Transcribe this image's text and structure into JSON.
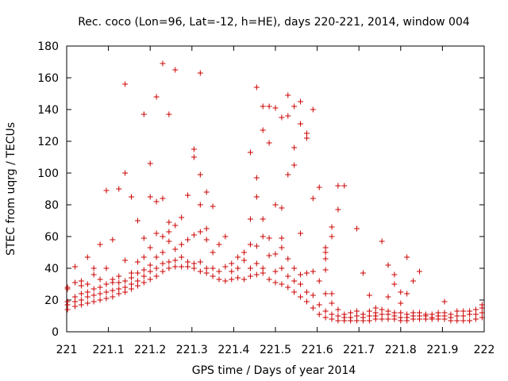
{
  "chart_data": {
    "type": "scatter",
    "title": "Rec. coco (Lon=96, Lat=-12, h=HE), days 220-221, 2014, window 004",
    "xlabel": "GPS time / Days of year 2014",
    "ylabel": "STEC from uqrg / TECUs",
    "xlim": [
      221,
      222
    ],
    "ylim": [
      0,
      180
    ],
    "x_ticks": [
      221,
      221.1,
      221.2,
      221.3,
      221.4,
      221.5,
      221.6,
      221.7,
      221.8,
      221.9,
      222
    ],
    "x_tick_labels": [
      "221",
      "221.1",
      "221.2",
      "221.3",
      "221.4",
      "221.5",
      "221.6",
      "221.7",
      "221.8",
      "221.9",
      "222"
    ],
    "y_ticks": [
      0,
      20,
      40,
      60,
      80,
      100,
      120,
      140,
      160,
      180
    ],
    "y_tick_labels": [
      "0",
      "20",
      "40",
      "60",
      "80",
      "100",
      "120",
      "140",
      "160",
      "180"
    ],
    "grid": false,
    "marker": "plus",
    "color": "#cc0000",
    "points": [
      [
        221.002,
        14
      ],
      [
        221.002,
        17
      ],
      [
        221.002,
        19
      ],
      [
        221.002,
        27
      ],
      [
        221.002,
        28
      ],
      [
        221.02,
        16
      ],
      [
        221.02,
        19
      ],
      [
        221.02,
        22
      ],
      [
        221.02,
        31
      ],
      [
        221.02,
        41
      ],
      [
        221.035,
        17
      ],
      [
        221.035,
        20
      ],
      [
        221.035,
        24
      ],
      [
        221.035,
        29
      ],
      [
        221.035,
        32
      ],
      [
        221.05,
        18
      ],
      [
        221.05,
        22
      ],
      [
        221.05,
        25
      ],
      [
        221.05,
        30
      ],
      [
        221.05,
        47
      ],
      [
        221.065,
        19
      ],
      [
        221.065,
        23
      ],
      [
        221.065,
        27
      ],
      [
        221.065,
        36
      ],
      [
        221.065,
        40
      ],
      [
        221.08,
        20
      ],
      [
        221.08,
        24
      ],
      [
        221.08,
        28
      ],
      [
        221.08,
        33
      ],
      [
        221.08,
        55
      ],
      [
        221.095,
        21
      ],
      [
        221.095,
        25
      ],
      [
        221.095,
        30
      ],
      [
        221.095,
        40
      ],
      [
        221.095,
        89
      ],
      [
        221.11,
        22
      ],
      [
        221.11,
        26
      ],
      [
        221.11,
        31
      ],
      [
        221.11,
        33
      ],
      [
        221.11,
        58
      ],
      [
        221.125,
        24
      ],
      [
        221.125,
        27
      ],
      [
        221.125,
        31
      ],
      [
        221.125,
        35
      ],
      [
        221.125,
        90
      ],
      [
        221.14,
        25
      ],
      [
        221.14,
        28
      ],
      [
        221.14,
        32
      ],
      [
        221.14,
        45
      ],
      [
        221.14,
        100
      ],
      [
        221.14,
        156
      ],
      [
        221.155,
        27
      ],
      [
        221.155,
        30
      ],
      [
        221.155,
        34
      ],
      [
        221.155,
        37
      ],
      [
        221.155,
        85
      ],
      [
        221.17,
        29
      ],
      [
        221.17,
        32
      ],
      [
        221.17,
        37
      ],
      [
        221.17,
        44
      ],
      [
        221.17,
        70
      ],
      [
        221.185,
        31
      ],
      [
        221.185,
        35
      ],
      [
        221.185,
        39
      ],
      [
        221.185,
        47
      ],
      [
        221.185,
        59
      ],
      [
        221.185,
        137
      ],
      [
        221.2,
        33
      ],
      [
        221.2,
        38
      ],
      [
        221.2,
        42
      ],
      [
        221.2,
        53
      ],
      [
        221.2,
        85
      ],
      [
        221.2,
        106
      ],
      [
        221.215,
        35
      ],
      [
        221.215,
        40
      ],
      [
        221.215,
        47
      ],
      [
        221.215,
        62
      ],
      [
        221.215,
        82
      ],
      [
        221.215,
        148
      ],
      [
        221.23,
        38
      ],
      [
        221.23,
        43
      ],
      [
        221.23,
        50
      ],
      [
        221.23,
        60
      ],
      [
        221.23,
        84
      ],
      [
        221.23,
        169
      ],
      [
        221.245,
        40
      ],
      [
        221.245,
        44
      ],
      [
        221.245,
        57
      ],
      [
        221.245,
        63
      ],
      [
        221.245,
        69
      ],
      [
        221.245,
        137
      ],
      [
        221.26,
        41
      ],
      [
        221.26,
        45
      ],
      [
        221.26,
        52
      ],
      [
        221.26,
        67
      ],
      [
        221.26,
        165
      ],
      [
        221.275,
        41
      ],
      [
        221.275,
        47
      ],
      [
        221.275,
        55
      ],
      [
        221.275,
        72
      ],
      [
        221.29,
        41
      ],
      [
        221.29,
        44
      ],
      [
        221.29,
        58
      ],
      [
        221.29,
        86
      ],
      [
        221.305,
        40
      ],
      [
        221.305,
        43
      ],
      [
        221.305,
        61
      ],
      [
        221.305,
        110
      ],
      [
        221.305,
        115
      ],
      [
        221.32,
        38
      ],
      [
        221.32,
        44
      ],
      [
        221.32,
        63
      ],
      [
        221.32,
        80
      ],
      [
        221.32,
        99
      ],
      [
        221.32,
        163
      ],
      [
        221.335,
        37
      ],
      [
        221.335,
        40
      ],
      [
        221.335,
        58
      ],
      [
        221.335,
        65
      ],
      [
        221.335,
        88
      ],
      [
        221.35,
        35
      ],
      [
        221.35,
        40
      ],
      [
        221.35,
        50
      ],
      [
        221.35,
        79
      ],
      [
        221.365,
        33
      ],
      [
        221.365,
        38
      ],
      [
        221.365,
        55
      ],
      [
        221.38,
        32
      ],
      [
        221.38,
        41
      ],
      [
        221.38,
        60
      ],
      [
        221.395,
        33
      ],
      [
        221.395,
        38
      ],
      [
        221.395,
        43
      ],
      [
        221.41,
        34
      ],
      [
        221.41,
        40
      ],
      [
        221.41,
        47
      ],
      [
        221.425,
        33
      ],
      [
        221.425,
        45
      ],
      [
        221.425,
        50
      ],
      [
        221.44,
        35
      ],
      [
        221.44,
        40
      ],
      [
        221.44,
        55
      ],
      [
        221.44,
        71
      ],
      [
        221.44,
        113
      ],
      [
        221.455,
        36
      ],
      [
        221.455,
        43
      ],
      [
        221.455,
        54
      ],
      [
        221.455,
        85
      ],
      [
        221.455,
        97
      ],
      [
        221.455,
        154
      ],
      [
        221.47,
        37
      ],
      [
        221.47,
        40
      ],
      [
        221.47,
        60
      ],
      [
        221.47,
        71
      ],
      [
        221.47,
        127
      ],
      [
        221.47,
        142
      ],
      [
        221.485,
        33
      ],
      [
        221.485,
        48
      ],
      [
        221.485,
        59
      ],
      [
        221.485,
        119
      ],
      [
        221.485,
        142
      ],
      [
        221.5,
        31
      ],
      [
        221.5,
        38
      ],
      [
        221.5,
        49
      ],
      [
        221.5,
        80
      ],
      [
        221.5,
        141
      ],
      [
        221.515,
        30
      ],
      [
        221.515,
        40
      ],
      [
        221.515,
        53
      ],
      [
        221.515,
        59
      ],
      [
        221.515,
        78
      ],
      [
        221.515,
        135
      ],
      [
        221.53,
        28
      ],
      [
        221.53,
        35
      ],
      [
        221.53,
        46
      ],
      [
        221.53,
        99
      ],
      [
        221.53,
        136
      ],
      [
        221.53,
        149
      ],
      [
        221.545,
        25
      ],
      [
        221.545,
        32
      ],
      [
        221.545,
        40
      ],
      [
        221.545,
        105
      ],
      [
        221.545,
        116
      ],
      [
        221.545,
        142
      ],
      [
        221.56,
        22
      ],
      [
        221.56,
        30
      ],
      [
        221.56,
        36
      ],
      [
        221.56,
        62
      ],
      [
        221.56,
        131
      ],
      [
        221.56,
        145
      ],
      [
        221.575,
        19
      ],
      [
        221.575,
        25
      ],
      [
        221.575,
        37
      ],
      [
        221.575,
        122
      ],
      [
        221.575,
        125
      ],
      [
        221.59,
        15
      ],
      [
        221.59,
        23
      ],
      [
        221.59,
        38
      ],
      [
        221.59,
        84
      ],
      [
        221.59,
        140
      ],
      [
        221.605,
        11
      ],
      [
        221.605,
        17
      ],
      [
        221.605,
        32
      ],
      [
        221.605,
        91
      ],
      [
        221.62,
        9
      ],
      [
        221.62,
        13
      ],
      [
        221.62,
        24
      ],
      [
        221.62,
        39
      ],
      [
        221.62,
        46
      ],
      [
        221.62,
        50
      ],
      [
        221.62,
        53
      ],
      [
        221.635,
        8
      ],
      [
        221.635,
        11
      ],
      [
        221.635,
        18
      ],
      [
        221.635,
        24
      ],
      [
        221.635,
        60
      ],
      [
        221.635,
        66
      ],
      [
        221.65,
        7
      ],
      [
        221.65,
        10
      ],
      [
        221.65,
        14
      ],
      [
        221.65,
        77
      ],
      [
        221.65,
        92
      ],
      [
        221.665,
        7
      ],
      [
        221.665,
        9
      ],
      [
        221.665,
        11
      ],
      [
        221.665,
        92
      ],
      [
        221.68,
        7
      ],
      [
        221.68,
        9
      ],
      [
        221.68,
        12
      ],
      [
        221.695,
        7
      ],
      [
        221.695,
        10
      ],
      [
        221.695,
        13
      ],
      [
        221.695,
        65
      ],
      [
        221.71,
        7
      ],
      [
        221.71,
        9
      ],
      [
        221.71,
        11
      ],
      [
        221.71,
        37
      ],
      [
        221.725,
        7
      ],
      [
        221.725,
        10
      ],
      [
        221.725,
        13
      ],
      [
        221.725,
        23
      ],
      [
        221.74,
        8
      ],
      [
        221.74,
        10
      ],
      [
        221.74,
        12
      ],
      [
        221.74,
        15
      ],
      [
        221.755,
        8
      ],
      [
        221.755,
        11
      ],
      [
        221.755,
        14
      ],
      [
        221.755,
        57
      ],
      [
        221.77,
        8
      ],
      [
        221.77,
        11
      ],
      [
        221.77,
        13
      ],
      [
        221.77,
        22
      ],
      [
        221.77,
        42
      ],
      [
        221.785,
        8
      ],
      [
        221.785,
        10
      ],
      [
        221.785,
        12
      ],
      [
        221.785,
        30
      ],
      [
        221.785,
        36
      ],
      [
        221.8,
        7
      ],
      [
        221.8,
        9
      ],
      [
        221.8,
        12
      ],
      [
        221.8,
        18
      ],
      [
        221.8,
        25
      ],
      [
        221.815,
        7
      ],
      [
        221.815,
        9
      ],
      [
        221.815,
        11
      ],
      [
        221.815,
        24
      ],
      [
        221.815,
        47
      ],
      [
        221.83,
        8
      ],
      [
        221.83,
        10
      ],
      [
        221.83,
        12
      ],
      [
        221.83,
        32
      ],
      [
        221.845,
        8
      ],
      [
        221.845,
        10
      ],
      [
        221.845,
        12
      ],
      [
        221.845,
        38
      ],
      [
        221.86,
        8
      ],
      [
        221.86,
        10
      ],
      [
        221.86,
        11
      ],
      [
        221.875,
        8
      ],
      [
        221.875,
        9
      ],
      [
        221.875,
        11
      ],
      [
        221.89,
        8
      ],
      [
        221.89,
        10
      ],
      [
        221.89,
        12
      ],
      [
        221.905,
        8
      ],
      [
        221.905,
        10
      ],
      [
        221.905,
        12
      ],
      [
        221.905,
        19
      ],
      [
        221.92,
        7
      ],
      [
        221.92,
        9
      ],
      [
        221.92,
        11
      ],
      [
        221.935,
        7
      ],
      [
        221.935,
        10
      ],
      [
        221.935,
        13
      ],
      [
        221.95,
        7
      ],
      [
        221.95,
        10
      ],
      [
        221.95,
        13
      ],
      [
        221.965,
        7
      ],
      [
        221.965,
        11
      ],
      [
        221.965,
        13
      ],
      [
        221.98,
        8
      ],
      [
        221.98,
        11
      ],
      [
        221.98,
        14
      ],
      [
        221.995,
        9
      ],
      [
        221.995,
        12
      ],
      [
        221.995,
        15
      ],
      [
        221.995,
        17
      ]
    ]
  }
}
